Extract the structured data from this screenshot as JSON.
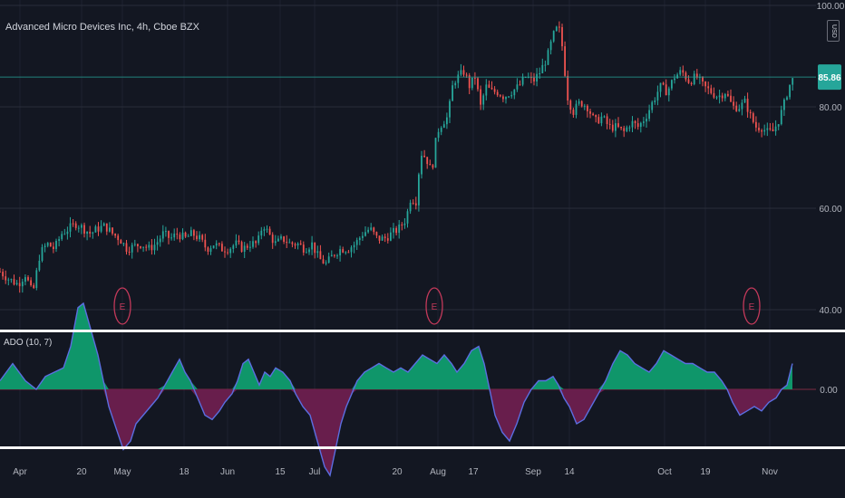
{
  "header": {
    "symbol_title": "Advanced Micro Devices Inc, 4h, Cboe BZX",
    "currency": "USD"
  },
  "oscillator": {
    "label": "ADO (10, 7)",
    "zero_label": "0.00"
  },
  "colors": {
    "background": "#131722",
    "up_candle": "#26a69a",
    "down_candle": "#ef5350",
    "price_line": "#26a69a",
    "osc_positive": "#0f9d6f",
    "osc_negative": "#6d1f4f",
    "osc_line": "#5b6ee1",
    "earnings": "#c2395a",
    "separator": "#ffffff"
  },
  "chart_data": [
    {
      "type": "candlestick",
      "title": "Advanced Micro Devices Inc, 4h, Cboe BZX",
      "ylim": [
        39,
        103
      ],
      "y_ticks": [
        "100.00",
        "80.00",
        "60.00",
        "40.00"
      ],
      "y_tick_values": [
        100,
        80,
        60,
        40
      ],
      "last_price": 85.86,
      "last_price_label": "85.86",
      "x_tick_labels": [
        "Apr",
        "20",
        "May",
        "18",
        "Jun",
        "15",
        "Jul",
        "20",
        "Aug",
        "17",
        "Sep",
        "14",
        "Oct",
        "19",
        "Nov"
      ],
      "earnings_marker_label": "E",
      "earnings_markers": [
        "late April",
        "late July",
        "late October"
      ],
      "close_path": [
        [
          0,
          47.5
        ],
        [
          10,
          46
        ],
        [
          20,
          45
        ],
        [
          28,
          47
        ],
        [
          36,
          43
        ],
        [
          44,
          51
        ],
        [
          52,
          53
        ],
        [
          60,
          52
        ],
        [
          68,
          55
        ],
        [
          76,
          56
        ],
        [
          84,
          57
        ],
        [
          92,
          56
        ],
        [
          100,
          55
        ],
        [
          108,
          56
        ],
        [
          116,
          56.5
        ],
        [
          124,
          55
        ],
        [
          132,
          54
        ],
        [
          140,
          52
        ],
        [
          148,
          52.5
        ],
        [
          156,
          53
        ],
        [
          164,
          52
        ],
        [
          172,
          53
        ],
        [
          180,
          55
        ],
        [
          188,
          54
        ],
        [
          196,
          55
        ],
        [
          204,
          54
        ],
        [
          212,
          55
        ],
        [
          220,
          54
        ],
        [
          228,
          52
        ],
        [
          236,
          53
        ],
        [
          244,
          52
        ],
        [
          252,
          52
        ],
        [
          260,
          53
        ],
        [
          268,
          52
        ],
        [
          276,
          53
        ],
        [
          284,
          53
        ],
        [
          290,
          57
        ],
        [
          296,
          55
        ],
        [
          304,
          53
        ],
        [
          312,
          54
        ],
        [
          320,
          53
        ],
        [
          328,
          53
        ],
        [
          336,
          52
        ],
        [
          344,
          53
        ],
        [
          352,
          50
        ],
        [
          360,
          49
        ],
        [
          368,
          51
        ],
        [
          376,
          52
        ],
        [
          384,
          52
        ],
        [
          392,
          53
        ],
        [
          400,
          55
        ],
        [
          408,
          56
        ],
        [
          416,
          54
        ],
        [
          424,
          54
        ],
        [
          432,
          55
        ],
        [
          440,
          56
        ],
        [
          448,
          58
        ],
        [
          454,
          63
        ],
        [
          458,
          60
        ],
        [
          464,
          71
        ],
        [
          470,
          70
        ],
        [
          476,
          67
        ],
        [
          482,
          75
        ],
        [
          488,
          77
        ],
        [
          494,
          78
        ],
        [
          500,
          85
        ],
        [
          506,
          86
        ],
        [
          512,
          87
        ],
        [
          518,
          84
        ],
        [
          524,
          86
        ],
        [
          530,
          80
        ],
        [
          536,
          84
        ],
        [
          542,
          83
        ],
        [
          548,
          83
        ],
        [
          556,
          82
        ],
        [
          564,
          83
        ],
        [
          572,
          84
        ],
        [
          580,
          86
        ],
        [
          588,
          85
        ],
        [
          596,
          87
        ],
        [
          604,
          90
        ],
        [
          610,
          94
        ],
        [
          616,
          96
        ],
        [
          620,
          92
        ],
        [
          626,
          82
        ],
        [
          632,
          79
        ],
        [
          640,
          81
        ],
        [
          648,
          80
        ],
        [
          656,
          77
        ],
        [
          664,
          78
        ],
        [
          672,
          76
        ],
        [
          680,
          76
        ],
        [
          688,
          75
        ],
        [
          696,
          77
        ],
        [
          704,
          76
        ],
        [
          712,
          78
        ],
        [
          720,
          81
        ],
        [
          728,
          84
        ],
        [
          736,
          83
        ],
        [
          744,
          86
        ],
        [
          752,
          87
        ],
        [
          760,
          85
        ],
        [
          768,
          86
        ],
        [
          776,
          84
        ],
        [
          784,
          83
        ],
        [
          792,
          82
        ],
        [
          800,
          83
        ],
        [
          808,
          80
        ],
        [
          816,
          80
        ],
        [
          822,
          81
        ],
        [
          828,
          78
        ],
        [
          834,
          76
        ],
        [
          840,
          76
        ],
        [
          846,
          75
        ],
        [
          852,
          75
        ],
        [
          858,
          77
        ],
        [
          864,
          80
        ],
        [
          870,
          84
        ],
        [
          876,
          85.9
        ]
      ],
      "series": [
        {
          "name": "last price",
          "values": [
            85.86
          ]
        }
      ]
    },
    {
      "type": "area",
      "title": "ADO (10, 7)",
      "ylim": [
        -1.25,
        1.25
      ],
      "zero_value": 0,
      "y_ticks": [
        "0.00"
      ],
      "values": [
        [
          0,
          0.1
        ],
        [
          14,
          0.3
        ],
        [
          28,
          0.1
        ],
        [
          40,
          0.0
        ],
        [
          50,
          0.15
        ],
        [
          60,
          0.2
        ],
        [
          70,
          0.25
        ],
        [
          78,
          0.5
        ],
        [
          86,
          0.95
        ],
        [
          92,
          1.0
        ],
        [
          100,
          0.7
        ],
        [
          108,
          0.4
        ],
        [
          114,
          0.1
        ],
        [
          120,
          -0.2
        ],
        [
          128,
          -0.45
        ],
        [
          136,
          -0.7
        ],
        [
          144,
          -0.6
        ],
        [
          150,
          -0.4
        ],
        [
          158,
          -0.3
        ],
        [
          166,
          -0.2
        ],
        [
          174,
          -0.1
        ],
        [
          182,
          0.05
        ],
        [
          190,
          0.2
        ],
        [
          198,
          0.35
        ],
        [
          204,
          0.2
        ],
        [
          210,
          0.1
        ],
        [
          218,
          -0.1
        ],
        [
          226,
          -0.3
        ],
        [
          234,
          -0.35
        ],
        [
          242,
          -0.25
        ],
        [
          248,
          -0.15
        ],
        [
          256,
          -0.05
        ],
        [
          262,
          0.1
        ],
        [
          268,
          0.3
        ],
        [
          274,
          0.35
        ],
        [
          280,
          0.2
        ],
        [
          286,
          0.05
        ],
        [
          292,
          0.2
        ],
        [
          298,
          0.15
        ],
        [
          304,
          0.25
        ],
        [
          312,
          0.2
        ],
        [
          320,
          0.1
        ],
        [
          326,
          -0.05
        ],
        [
          334,
          -0.2
        ],
        [
          342,
          -0.3
        ],
        [
          350,
          -0.6
        ],
        [
          358,
          -0.9
        ],
        [
          364,
          -1.0
        ],
        [
          370,
          -0.7
        ],
        [
          376,
          -0.4
        ],
        [
          382,
          -0.2
        ],
        [
          388,
          -0.05
        ],
        [
          394,
          0.1
        ],
        [
          402,
          0.2
        ],
        [
          410,
          0.25
        ],
        [
          418,
          0.3
        ],
        [
          426,
          0.25
        ],
        [
          434,
          0.2
        ],
        [
          442,
          0.25
        ],
        [
          450,
          0.2
        ],
        [
          458,
          0.3
        ],
        [
          466,
          0.4
        ],
        [
          474,
          0.35
        ],
        [
          482,
          0.3
        ],
        [
          490,
          0.4
        ],
        [
          498,
          0.3
        ],
        [
          504,
          0.2
        ],
        [
          512,
          0.3
        ],
        [
          520,
          0.45
        ],
        [
          528,
          0.5
        ],
        [
          534,
          0.3
        ],
        [
          540,
          0.0
        ],
        [
          546,
          -0.3
        ],
        [
          554,
          -0.5
        ],
        [
          562,
          -0.6
        ],
        [
          570,
          -0.4
        ],
        [
          578,
          -0.15
        ],
        [
          586,
          0.0
        ],
        [
          594,
          0.1
        ],
        [
          602,
          0.1
        ],
        [
          610,
          0.15
        ],
        [
          616,
          0.05
        ],
        [
          622,
          -0.1
        ],
        [
          628,
          -0.2
        ],
        [
          636,
          -0.4
        ],
        [
          644,
          -0.35
        ],
        [
          652,
          -0.2
        ],
        [
          660,
          -0.05
        ],
        [
          668,
          0.1
        ],
        [
          676,
          0.3
        ],
        [
          684,
          0.45
        ],
        [
          692,
          0.4
        ],
        [
          700,
          0.3
        ],
        [
          708,
          0.25
        ],
        [
          716,
          0.2
        ],
        [
          724,
          0.3
        ],
        [
          732,
          0.45
        ],
        [
          740,
          0.4
        ],
        [
          748,
          0.35
        ],
        [
          756,
          0.3
        ],
        [
          764,
          0.3
        ],
        [
          772,
          0.25
        ],
        [
          780,
          0.2
        ],
        [
          788,
          0.2
        ],
        [
          796,
          0.1
        ],
        [
          802,
          0.0
        ],
        [
          808,
          -0.15
        ],
        [
          816,
          -0.3
        ],
        [
          824,
          -0.25
        ],
        [
          832,
          -0.2
        ],
        [
          840,
          -0.25
        ],
        [
          848,
          -0.15
        ],
        [
          856,
          -0.1
        ],
        [
          862,
          0.0
        ],
        [
          868,
          0.05
        ],
        [
          874,
          0.3
        ]
      ]
    }
  ]
}
